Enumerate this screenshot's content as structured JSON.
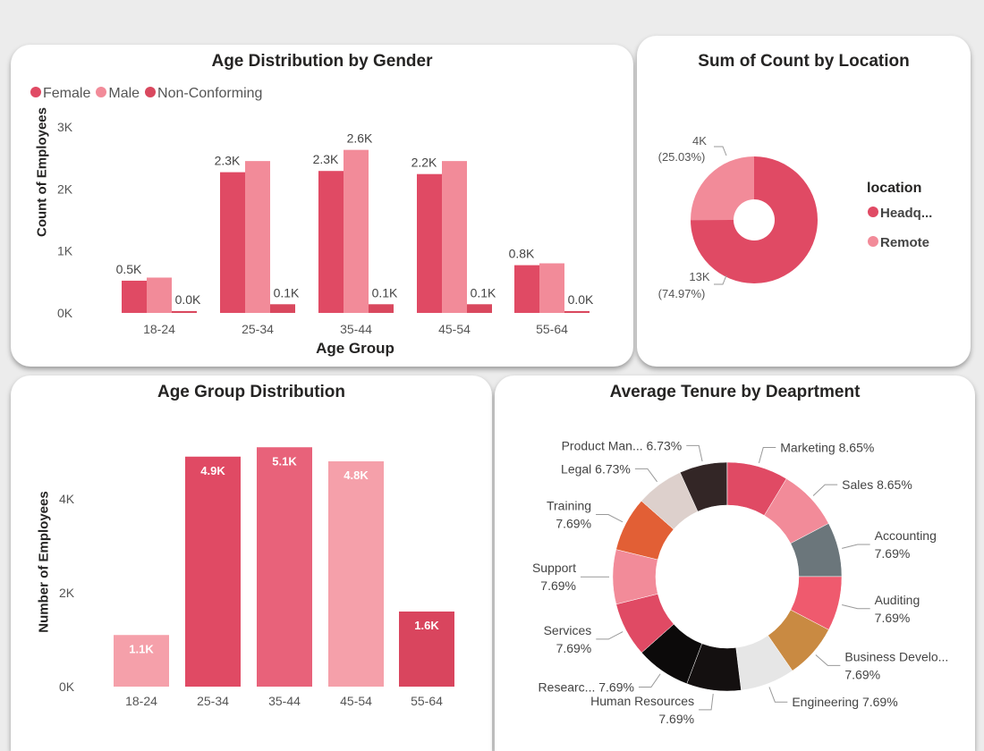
{
  "chart_data": [
    {
      "type": "bar",
      "title": "Age Distribution by Gender",
      "xlabel": "Age Group",
      "ylabel": "Count of Employees",
      "ylim": [
        0,
        3000
      ],
      "yticks": [
        "0K",
        "1K",
        "2K",
        "3K"
      ],
      "categories": [
        "18-24",
        "25-34",
        "35-44",
        "45-54",
        "55-64"
      ],
      "legend_position": "top-left",
      "series": [
        {
          "name": "Female",
          "color": "#e04a64",
          "values": [
            520,
            2270,
            2290,
            2240,
            770
          ],
          "labels": [
            "0.5K",
            "2.3K",
            "2.3K",
            "2.2K",
            "0.8K"
          ]
        },
        {
          "name": "Male",
          "color": "#f28b99",
          "values": [
            570,
            2450,
            2630,
            2450,
            800
          ],
          "labels": [
            null,
            null,
            "2.6K",
            null,
            null
          ]
        },
        {
          "name": "Non-Conforming",
          "color": "#d9485e",
          "values": [
            30,
            140,
            140,
            140,
            30
          ],
          "labels": [
            "0.0K",
            "0.1K",
            "0.1K",
            "0.1K",
            "0.0K"
          ]
        }
      ]
    },
    {
      "type": "pie",
      "title": "Sum of Count by Location",
      "legend_title": "location",
      "legend_position": "right",
      "slices": [
        {
          "name": "Headq...",
          "value": 13000,
          "label": "13K",
          "pct": "(74.97%)",
          "percent": 74.97,
          "color": "#e04a64"
        },
        {
          "name": "Remote",
          "value": 4000,
          "label": "4K",
          "pct": "(25.03%)",
          "percent": 25.03,
          "color": "#f28b99"
        }
      ]
    },
    {
      "type": "bar",
      "title": "Age Group Distribution",
      "xlabel": "",
      "ylabel": "Number of Employees",
      "ylim": [
        0,
        5300
      ],
      "yticks": [
        "0K",
        "2K",
        "4K"
      ],
      "categories": [
        "18-24",
        "25-34",
        "35-44",
        "45-54",
        "55-64"
      ],
      "values": [
        1100,
        4900,
        5100,
        4800,
        1600
      ],
      "labels": [
        "1.1K",
        "4.9K",
        "5.1K",
        "4.8K",
        "1.6K"
      ],
      "colors": [
        "#f5a0aa",
        "#e04a64",
        "#e8627a",
        "#f5a0aa",
        "#d9455e"
      ]
    },
    {
      "type": "pie",
      "title": "Average Tenure by Deaprtment",
      "slices": [
        {
          "name": "Marketing",
          "percent": 8.65,
          "label": "Marketing 8.65%",
          "color": "#e04a64"
        },
        {
          "name": "Sales",
          "percent": 8.65,
          "label": "Sales 8.65%",
          "color": "#f28b99"
        },
        {
          "name": "Accounting",
          "percent": 7.69,
          "label": "Accounting|7.69%",
          "color": "#6b767b"
        },
        {
          "name": "Auditing",
          "percent": 7.69,
          "label": "Auditing|7.69%",
          "color": "#ef5a6e"
        },
        {
          "name": "Business Develo...",
          "percent": 7.69,
          "label": "Business Develo...|7.69%",
          "color": "#c98a42"
        },
        {
          "name": "Engineering",
          "percent": 7.69,
          "label": "Engineering 7.69%",
          "color": "#e6e6e6"
        },
        {
          "name": "Human Resources",
          "percent": 7.69,
          "label": "Human Resources|7.69%",
          "color": "#141010"
        },
        {
          "name": "Researc...",
          "percent": 7.69,
          "label": "Researc... 7.69%",
          "color": "#0c0a0a"
        },
        {
          "name": "Services",
          "percent": 7.69,
          "label": "Services|7.69%",
          "color": "#e04a64"
        },
        {
          "name": "Support",
          "percent": 7.69,
          "label": "Support|7.69%",
          "color": "#f28b99"
        },
        {
          "name": "Training",
          "percent": 7.69,
          "label": "Training|7.69%",
          "color": "#e25f35"
        },
        {
          "name": "Legal",
          "percent": 6.73,
          "label": "Legal 6.73%",
          "color": "#ddd0cc"
        },
        {
          "name": "Product Man...",
          "percent": 6.73,
          "label": "Product Man... 6.73%",
          "color": "#332626"
        }
      ]
    }
  ]
}
